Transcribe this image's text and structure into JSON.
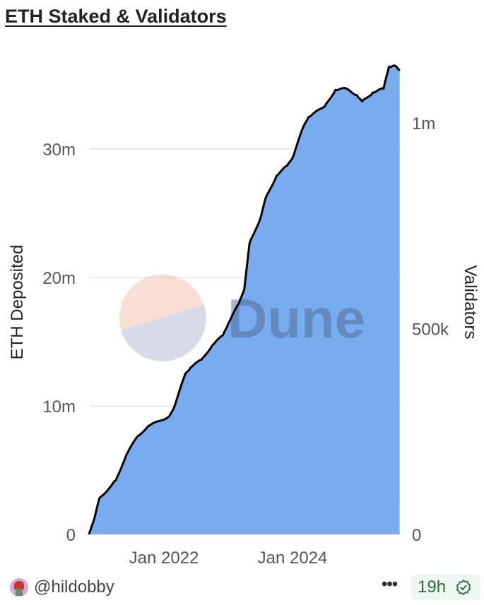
{
  "title": "ETH Staked & Validators",
  "chart_data": {
    "type": "area",
    "title": "ETH Staked & Validators",
    "ylabel": "ETH Deposited",
    "y2label": "Validators",
    "xlabel": "",
    "x_ticks": [
      "Jan 2022",
      "Jan 2024"
    ],
    "y_ticks": [
      "0",
      "10m",
      "20m",
      "30m"
    ],
    "y_tick_values": [
      0,
      10,
      20,
      30
    ],
    "y2_ticks": [
      "0",
      "500k",
      "1m"
    ],
    "y2_tick_values": [
      0,
      500,
      1000
    ],
    "ylim": [
      0,
      36.5
    ],
    "grid": true,
    "fill_color": "#78acee",
    "line_color": "#000000",
    "series": [
      {
        "x": [
          "2020-11",
          "2020-12",
          "2021-01",
          "2021-03",
          "2021-04",
          "2021-06",
          "2021-08",
          "2021-10",
          "2022-02",
          "2022-03",
          "2022-05",
          "2022-06",
          "2022-08",
          "2022-10",
          "2022-12",
          "2023-01",
          "2023-03",
          "2023-04",
          "2023-05",
          "2023-07",
          "2023-08",
          "2023-10",
          "2023-12",
          "2024-01",
          "2024-03",
          "2024-04",
          "2024-07",
          "2024-09",
          "2024-11",
          "2025-01",
          "2025-02",
          "2025-04",
          "2025-06",
          "2025-07",
          "2025-08",
          "2025-09"
        ],
        "values": [
          0,
          1.2,
          2.85,
          3.7,
          4.2,
          6.2,
          7.6,
          8.4,
          9.2,
          10.0,
          12.5,
          13.0,
          13.6,
          14.7,
          15.5,
          16.4,
          18.0,
          19.1,
          22.7,
          24.6,
          26.2,
          27.9,
          28.7,
          29.3,
          31.7,
          32.5,
          33.3,
          34.6,
          34.7,
          34.2,
          33.7,
          34.4,
          34.7,
          36.4,
          36.5,
          36.1
        ]
      }
    ]
  },
  "watermark": "Dune",
  "footer": {
    "user": "@hildobby",
    "more": "•••",
    "age": "19h"
  },
  "icons": {
    "avatar": "user-avatar",
    "verified": "verified-check-icon",
    "more": "more-dots-icon"
  }
}
